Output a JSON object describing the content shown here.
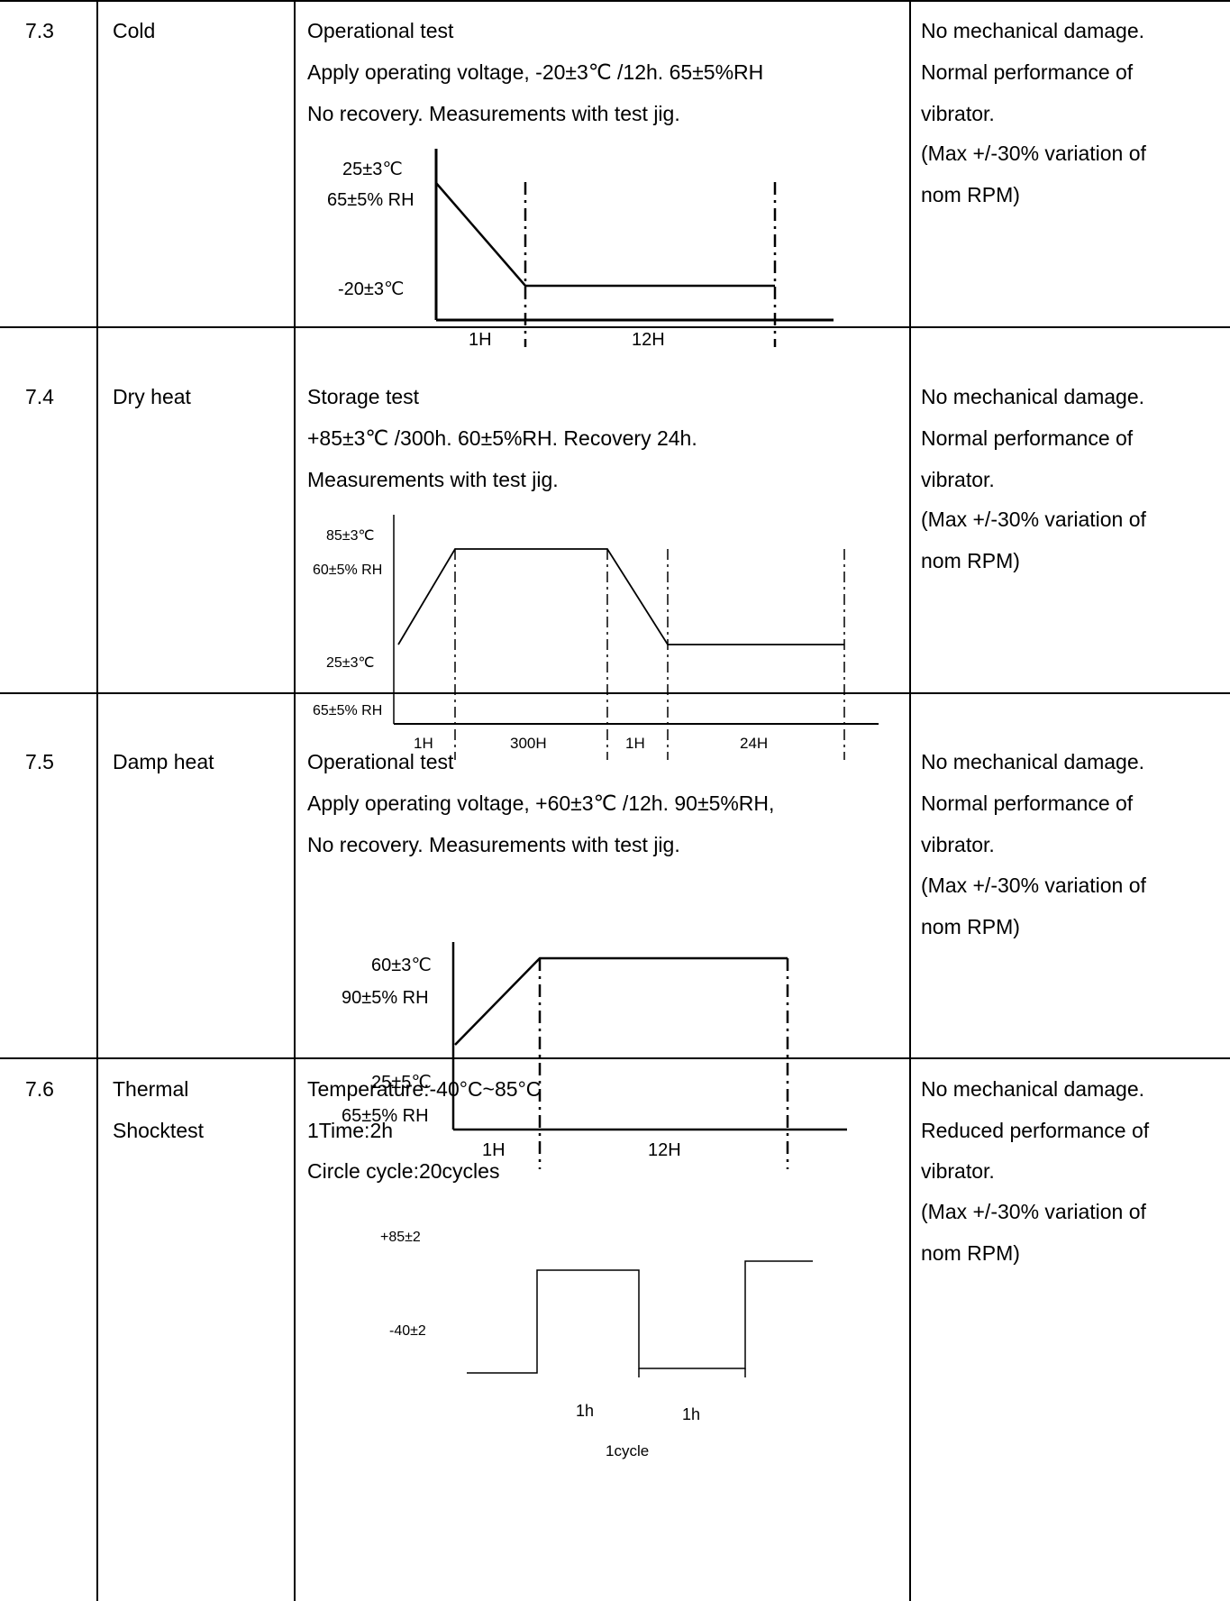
{
  "rows": [
    {
      "no": "7.3",
      "item": [
        "Cold"
      ],
      "condition": [
        "Operational test",
        "Apply operating voltage, -20±3℃ /12h. 65±5%RH",
        "No recovery. Measurements with test jig."
      ],
      "result": [
        "No mechanical damage.",
        "Normal performance of",
        "vibrator.",
        "(Max +/-30% variation of",
        "nom RPM)"
      ],
      "diagram": {
        "y_high": [
          "25±3℃",
          "65±5% RH"
        ],
        "y_low": "-20±3℃",
        "segments": [
          "1H",
          "12H"
        ]
      }
    },
    {
      "no": "7.4",
      "item": [
        "Dry heat"
      ],
      "condition": [
        "Storage test",
        "+85±3℃ /300h. 60±5%RH. Recovery 24h.",
        "Measurements with test jig."
      ],
      "result": [
        "No mechanical damage.",
        "Normal performance of",
        "vibrator.",
        "(Max +/-30% variation of",
        "nom RPM)"
      ],
      "diagram": {
        "y_high": [
          "85±3℃",
          "60±5% RH"
        ],
        "y_low": [
          "25±3℃",
          "65±5% RH"
        ],
        "segments": [
          "1H",
          "300H",
          "1H",
          "24H"
        ]
      }
    },
    {
      "no": "7.5",
      "item": [
        "Damp heat"
      ],
      "condition": [
        "Operational test",
        "Apply operating voltage, +60±3℃ /12h. 90±5%RH,",
        "No recovery. Measurements with test jig."
      ],
      "result": [
        "No mechanical damage.",
        "Normal performance of",
        "vibrator.",
        "(Max +/-30% variation of",
        "nom RPM)"
      ],
      "diagram": {
        "y_high": [
          "60±3℃",
          "90±5% RH"
        ],
        "y_low": [
          "25±5℃",
          "65±5% RH"
        ],
        "segments": [
          "1H",
          "12H"
        ]
      }
    },
    {
      "no": "7.6",
      "item": [
        "Thermal",
        "Shocktest"
      ],
      "condition": [
        "Temperature:-40°C~85°C",
        "1Time:2h",
        "Circle cycle:20cycles"
      ],
      "result": [
        "No mechanical damage.",
        "Reduced performance of",
        "vibrator.",
        "(Max +/-30% variation of",
        "nom RPM)"
      ],
      "diagram": {
        "y_high": "+85±2",
        "y_low": "-40±2",
        "segments": [
          "1h",
          "1h"
        ],
        "cycle_label": "1cycle"
      }
    }
  ]
}
